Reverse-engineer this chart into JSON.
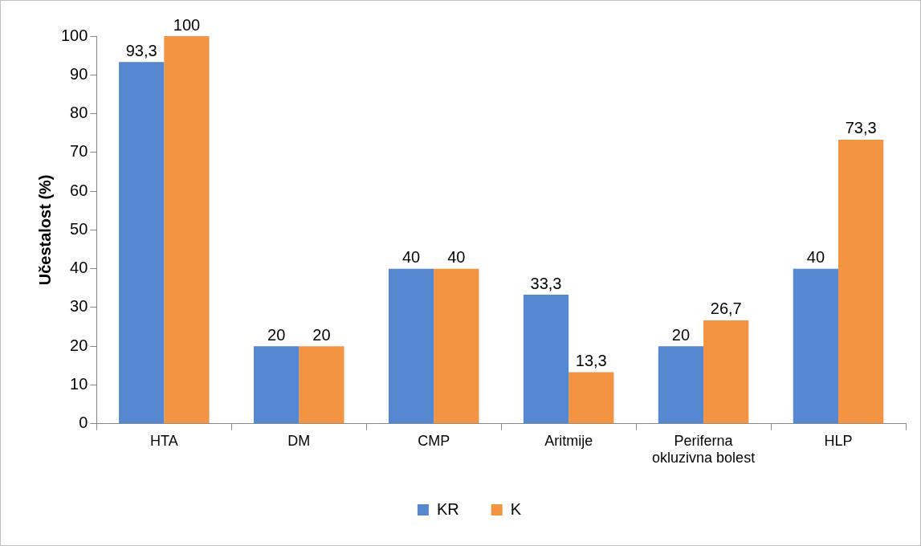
{
  "chart_data": {
    "type": "bar",
    "ylabel": "Učestalost (%)",
    "categories": [
      "HTA",
      "DM",
      "CMP",
      "Aritmije",
      "Periferna okluzivna bolest",
      "HLP"
    ],
    "series": [
      {
        "name": "KR",
        "color": "#5588d0",
        "values": [
          93.3,
          20,
          40,
          33.3,
          20,
          40
        ],
        "value_labels": [
          "93,3",
          "20",
          "40",
          "33,3",
          "20",
          "40"
        ]
      },
      {
        "name": "K",
        "color": "#f39442",
        "values": [
          100,
          20,
          40,
          13.3,
          26.7,
          73.3
        ],
        "value_labels": [
          "100",
          "20",
          "40",
          "13,3",
          "26,7",
          "73,3"
        ]
      }
    ],
    "ylim": [
      0,
      100
    ],
    "yticks": [
      0,
      10,
      20,
      30,
      40,
      50,
      60,
      70,
      80,
      90,
      100
    ],
    "grid": false,
    "legend": "bottom"
  }
}
